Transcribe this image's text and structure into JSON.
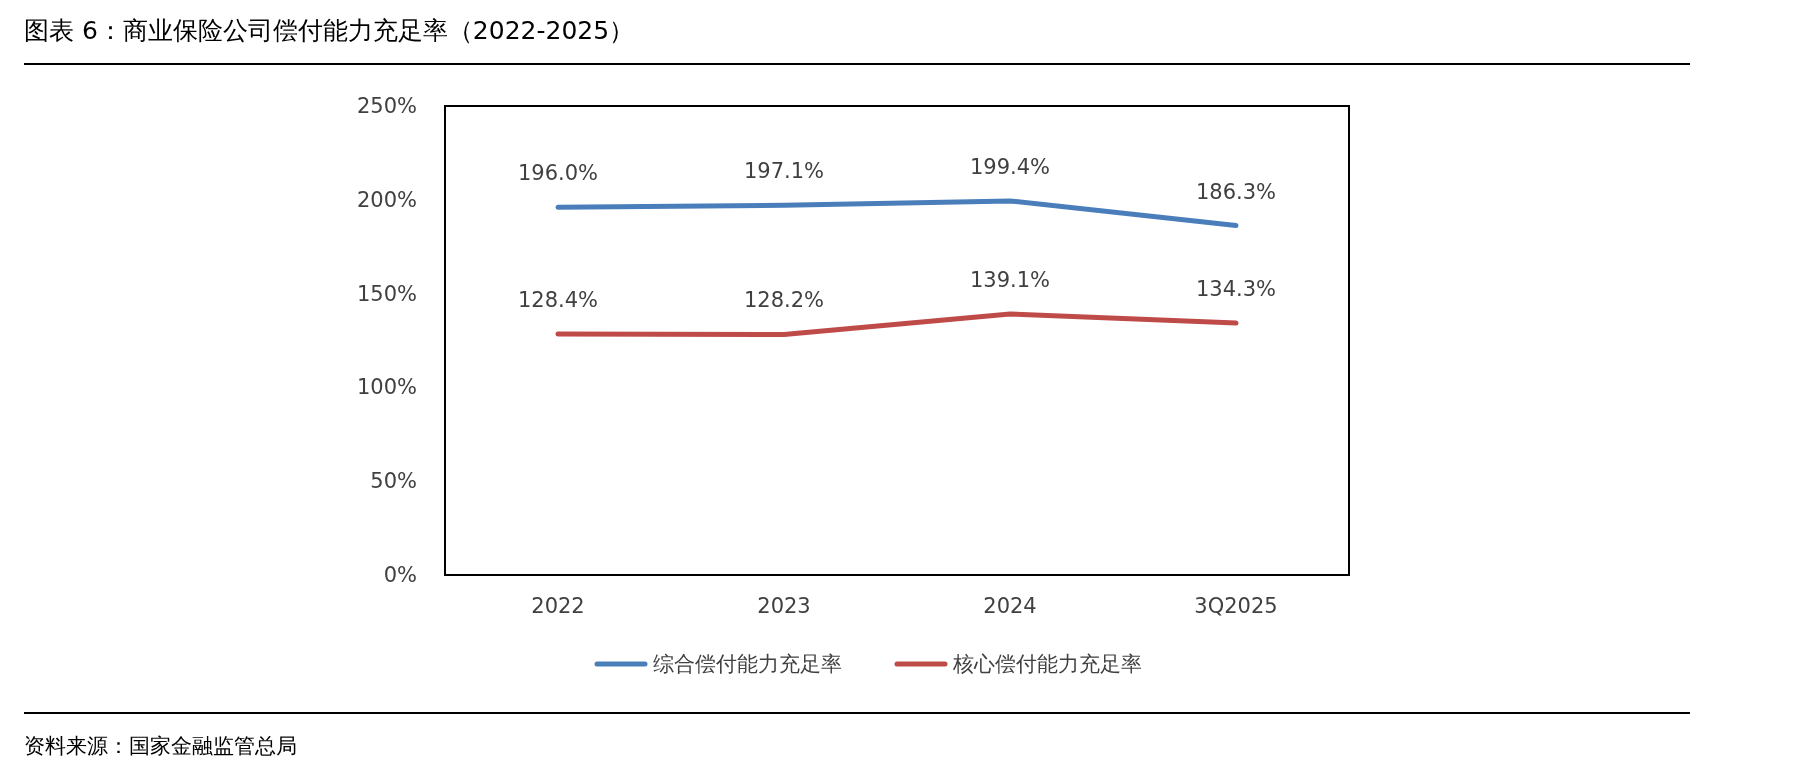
{
  "chart_data": {
    "type": "line",
    "title": "图表 6：商业保险公司偿付能力充足率（2022-2025）",
    "annotations": [
      "资料来源：国家金融监管总局"
    ],
    "categories": [
      "2022",
      "2023",
      "2024",
      "3Q2025"
    ],
    "series": [
      {
        "name": "综合偿付能力充足率",
        "color": "#4a7ebb",
        "values": [
          196.0,
          197.1,
          199.4,
          186.3
        ],
        "value_labels": [
          "196.0%",
          "197.1%",
          "199.4%",
          "186.3%"
        ]
      },
      {
        "name": "核心偿付能力充足率",
        "color": "#be4b48",
        "values": [
          128.4,
          128.2,
          139.1,
          134.3
        ],
        "value_labels": [
          "128.4%",
          "128.2%",
          "139.1%",
          "134.3%"
        ]
      }
    ],
    "ylim": [
      0,
      250
    ],
    "yticks": [
      {
        "value": 0,
        "label": "0%"
      },
      {
        "value": 50,
        "label": "50%"
      },
      {
        "value": 100,
        "label": "100%"
      },
      {
        "value": 150,
        "label": "150%"
      },
      {
        "value": 200,
        "label": "200%"
      },
      {
        "value": 250,
        "label": "250%"
      }
    ],
    "grid": false,
    "legend": "bottom",
    "marker": "none",
    "line_style": "solid"
  }
}
